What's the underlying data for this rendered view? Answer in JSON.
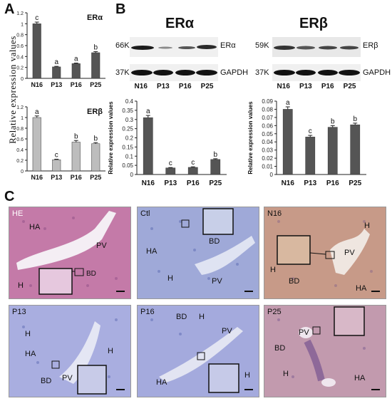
{
  "panels": {
    "a": "A",
    "b": "B",
    "c": "C"
  },
  "panel_a": {
    "ylabel": "Relative expression values"
  },
  "blots": {
    "alpha": {
      "title": "ERα",
      "kda_target": "66K",
      "kda_ref": "37K",
      "target_label": "ERα",
      "ref_label": "GAPDH",
      "lanes": [
        "N16",
        "P13",
        "P16",
        "P25"
      ]
    },
    "beta": {
      "title": "ERβ",
      "kda_target": "59K",
      "kda_ref": "37K",
      "target_label": "ERβ",
      "ref_label": "GAPDH",
      "lanes": [
        "N16",
        "P13",
        "P16",
        "P25"
      ]
    }
  },
  "chart_data": [
    {
      "id": "a_alpha",
      "type": "bar",
      "title": "ERα",
      "ylabel": "Relative expression values",
      "categories": [
        "N16",
        "P13",
        "P16",
        "P25"
      ],
      "values": [
        1.0,
        0.21,
        0.27,
        0.47
      ],
      "errors": [
        0.03,
        0.01,
        0.01,
        0.02
      ],
      "letters": [
        "c",
        "a",
        "a",
        "b"
      ],
      "ylim": [
        0,
        1.2
      ],
      "yticks": [
        "0",
        "0.2",
        "0.4",
        "0.6",
        "0.8",
        "1",
        "1.2"
      ],
      "bar_color": "#555555"
    },
    {
      "id": "a_beta",
      "type": "bar",
      "title": "ERβ",
      "ylabel": "Relative expression values",
      "categories": [
        "N16",
        "P13",
        "P16",
        "P25"
      ],
      "values": [
        1.0,
        0.21,
        0.54,
        0.51
      ],
      "errors": [
        0.03,
        0.01,
        0.03,
        0.02
      ],
      "letters": [
        "a",
        "c",
        "b",
        "b"
      ],
      "ylim": [
        0,
        1.2
      ],
      "yticks": [
        "0",
        "0.2",
        "0.4",
        "0.6",
        "0.8",
        "1",
        "1.2"
      ],
      "bar_color": "#bdbdbd"
    },
    {
      "id": "b_alpha",
      "type": "bar",
      "ylabel": "Relative expression values",
      "categories": [
        "N16",
        "P13",
        "P16",
        "P25"
      ],
      "values": [
        0.31,
        0.036,
        0.039,
        0.082
      ],
      "errors": [
        0.012,
        0.002,
        0.003,
        0.004
      ],
      "letters": [
        "a",
        "c",
        "c",
        "b"
      ],
      "ylim": [
        0,
        0.4
      ],
      "yticks": [
        "0",
        "0.05",
        "0.1",
        "0.15",
        "0.2",
        "0.25",
        "0.3",
        "0.35",
        "0.4"
      ],
      "bar_color": "#555555"
    },
    {
      "id": "b_beta",
      "type": "bar",
      "ylabel": "Relative expression values",
      "categories": [
        "N16",
        "P13",
        "P16",
        "P25"
      ],
      "values": [
        0.08,
        0.046,
        0.058,
        0.061
      ],
      "errors": [
        0.003,
        0.002,
        0.002,
        0.002
      ],
      "letters": [
        "a",
        "c",
        "b",
        "b"
      ],
      "ylim": [
        0,
        0.09
      ],
      "yticks": [
        "0",
        "0.01",
        "0.02",
        "0.03",
        "0.04",
        "0.05",
        "0.06",
        "0.07",
        "0.08",
        "0.09"
      ],
      "bar_color": "#555555"
    }
  ],
  "micrographs": [
    {
      "tag": "HE",
      "labels": [
        "HA",
        "PV",
        "BD",
        "H"
      ]
    },
    {
      "tag": "Ctl",
      "labels": [
        "BD",
        "HA",
        "H",
        "PV"
      ]
    },
    {
      "tag": "N16",
      "labels": [
        "H",
        "PV",
        "H",
        "BD",
        "HA"
      ]
    },
    {
      "tag": "P13",
      "labels": [
        "HA",
        "H",
        "PV",
        "H",
        "BD"
      ]
    },
    {
      "tag": "P16",
      "labels": [
        "BD",
        "H",
        "PV",
        "H",
        "HA"
      ]
    },
    {
      "tag": "P25",
      "labels": [
        "PV",
        "BD",
        "H",
        "HA"
      ]
    }
  ]
}
